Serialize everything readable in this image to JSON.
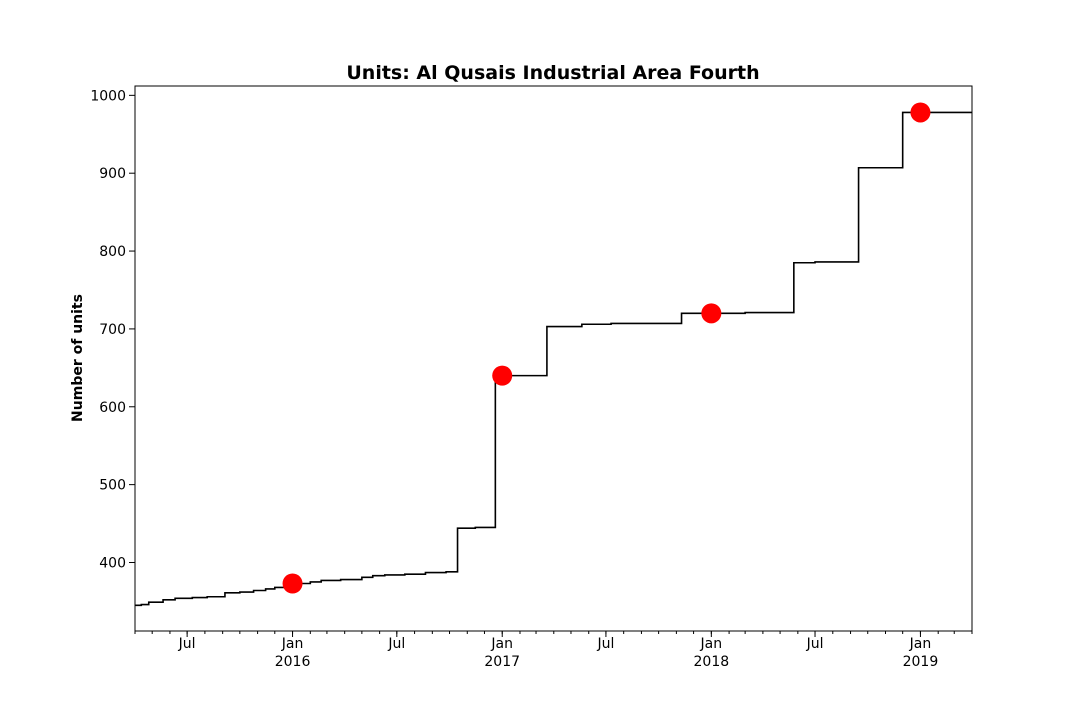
{
  "chart_data": {
    "type": "line",
    "title": "Units: Al Qusais Industrial Area Fourth",
    "xlabel": "",
    "ylabel": "Number of units",
    "xlim": [
      "2015-04-01",
      "2019-04-01"
    ],
    "ylim": [
      312,
      1012
    ],
    "y_ticks": [
      400,
      500,
      600,
      700,
      800,
      900,
      1000
    ],
    "x_ticks": [
      {
        "date": "2015-07-01",
        "label": "Jul",
        "sublabel": ""
      },
      {
        "date": "2016-01-01",
        "label": "Jan",
        "sublabel": "2016"
      },
      {
        "date": "2016-07-01",
        "label": "Jul",
        "sublabel": ""
      },
      {
        "date": "2017-01-01",
        "label": "Jan",
        "sublabel": "2017"
      },
      {
        "date": "2017-07-01",
        "label": "Jul",
        "sublabel": ""
      },
      {
        "date": "2018-01-01",
        "label": "Jan",
        "sublabel": "2018"
      },
      {
        "date": "2018-07-01",
        "label": "Jul",
        "sublabel": ""
      },
      {
        "date": "2019-01-01",
        "label": "Jan",
        "sublabel": "2019"
      }
    ],
    "minor_ticks": true,
    "grid": false,
    "series": [
      {
        "style": "step",
        "color": "#000000",
        "points": [
          {
            "x": "2015-04-01",
            "y": 345
          },
          {
            "x": "2015-04-12",
            "y": 346
          },
          {
            "x": "2015-04-25",
            "y": 349
          },
          {
            "x": "2015-05-20",
            "y": 352
          },
          {
            "x": "2015-06-10",
            "y": 354
          },
          {
            "x": "2015-07-10",
            "y": 355
          },
          {
            "x": "2015-08-05",
            "y": 356
          },
          {
            "x": "2015-09-05",
            "y": 361
          },
          {
            "x": "2015-10-01",
            "y": 362
          },
          {
            "x": "2015-10-25",
            "y": 364
          },
          {
            "x": "2015-11-15",
            "y": 366
          },
          {
            "x": "2015-12-01",
            "y": 368
          },
          {
            "x": "2015-12-20",
            "y": 371
          },
          {
            "x": "2016-01-10",
            "y": 373
          },
          {
            "x": "2016-02-01",
            "y": 375
          },
          {
            "x": "2016-02-20",
            "y": 377
          },
          {
            "x": "2016-03-25",
            "y": 378
          },
          {
            "x": "2016-05-01",
            "y": 381
          },
          {
            "x": "2016-05-20",
            "y": 383
          },
          {
            "x": "2016-06-10",
            "y": 384
          },
          {
            "x": "2016-07-15",
            "y": 385
          },
          {
            "x": "2016-08-20",
            "y": 387
          },
          {
            "x": "2016-09-25",
            "y": 388
          },
          {
            "x": "2016-10-15",
            "y": 444
          },
          {
            "x": "2016-11-15",
            "y": 445
          },
          {
            "x": "2016-12-20",
            "y": 640
          },
          {
            "x": "2017-03-20",
            "y": 703
          },
          {
            "x": "2017-05-20",
            "y": 706
          },
          {
            "x": "2017-07-10",
            "y": 707
          },
          {
            "x": "2017-11-10",
            "y": 720
          },
          {
            "x": "2018-03-01",
            "y": 721
          },
          {
            "x": "2018-05-25",
            "y": 785
          },
          {
            "x": "2018-07-01",
            "y": 786
          },
          {
            "x": "2018-09-15",
            "y": 907
          },
          {
            "x": "2018-12-01",
            "y": 978
          },
          {
            "x": "2019-04-01",
            "y": 978
          }
        ]
      },
      {
        "style": "markers",
        "color": "#ff0000",
        "points": [
          {
            "x": "2016-01-01",
            "y": 373
          },
          {
            "x": "2017-01-01",
            "y": 640
          },
          {
            "x": "2018-01-01",
            "y": 720
          },
          {
            "x": "2019-01-01",
            "y": 978
          }
        ]
      }
    ]
  }
}
